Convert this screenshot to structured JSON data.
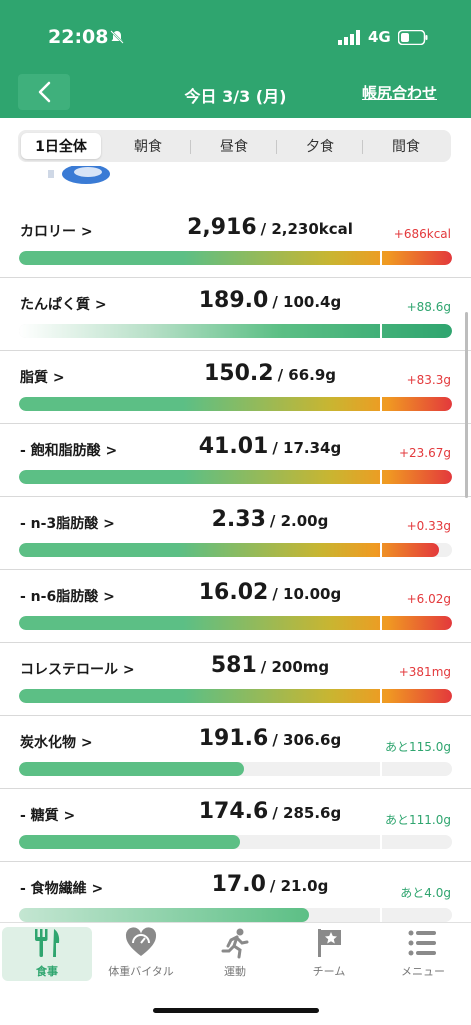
{
  "status_bar": {
    "time": "22:08",
    "network": "4G"
  },
  "nav": {
    "title": "今日 3/3 (月)",
    "action": "帳尻合わせ"
  },
  "tabs": [
    {
      "label": "1日全体",
      "active": true
    },
    {
      "label": "朝食",
      "active": false
    },
    {
      "label": "昼食",
      "active": false
    },
    {
      "label": "夕食",
      "active": false
    },
    {
      "label": "間食",
      "active": false
    }
  ],
  "nutrients": [
    {
      "label": "カロリー >",
      "value": "2,916",
      "target": "/ 2,230kcal",
      "diff": "+686kcal",
      "diff_type": "over",
      "fill_percent": 100,
      "gradient": "over"
    },
    {
      "label": "たんぱく質 >",
      "value": "189.0",
      "target": "/ 100.4g",
      "diff": "+88.6g",
      "diff_type": "green",
      "fill_percent": 100,
      "gradient": "protein"
    },
    {
      "label": "脂質 >",
      "value": "150.2",
      "target": "/ 66.9g",
      "diff": "+83.3g",
      "diff_type": "over",
      "fill_percent": 100,
      "gradient": "over"
    },
    {
      "label": "- 飽和脂肪酸 >",
      "value": "41.01",
      "target": "/ 17.34g",
      "diff": "+23.67g",
      "diff_type": "over",
      "fill_percent": 100,
      "gradient": "over"
    },
    {
      "label": "- n-3脂肪酸 >",
      "value": "2.33",
      "target": "/ 2.00g",
      "diff": "+0.33g",
      "diff_type": "over",
      "fill_percent": 97,
      "gradient": "over"
    },
    {
      "label": "- n-6脂肪酸 >",
      "value": "16.02",
      "target": "/ 10.00g",
      "diff": "+6.02g",
      "diff_type": "over",
      "fill_percent": 100,
      "gradient": "over"
    },
    {
      "label": "コレステロール >",
      "value": "581",
      "target": "/ 200mg",
      "diff": "+381mg",
      "diff_type": "over",
      "fill_percent": 100,
      "gradient": "over"
    },
    {
      "label": "炭水化物 >",
      "value": "191.6",
      "target": "/ 306.6g",
      "diff": "あと115.0g",
      "diff_type": "green",
      "fill_percent": 52,
      "gradient": "under"
    },
    {
      "label": "- 糖質 >",
      "value": "174.6",
      "target": "/ 285.6g",
      "diff": "あと111.0g",
      "diff_type": "green",
      "fill_percent": 51,
      "gradient": "under"
    },
    {
      "label": "- 食物繊維 >",
      "value": "17.0",
      "target": "/ 21.0g",
      "diff": "あと4.0g",
      "diff_type": "green",
      "fill_percent": 67,
      "gradient": "fiber"
    }
  ],
  "bottom_nav": [
    {
      "label": "食事",
      "icon": "utensils-icon",
      "active": true
    },
    {
      "label": "体重バイタル",
      "icon": "heart-gauge-icon",
      "active": false
    },
    {
      "label": "運動",
      "icon": "running-icon",
      "active": false
    },
    {
      "label": "チーム",
      "icon": "flag-star-icon",
      "active": false
    },
    {
      "label": "メニュー",
      "icon": "menu-list-icon",
      "active": false
    }
  ],
  "colors": {
    "brand": "#2fa56f",
    "over": "#e3393c",
    "bar_green": "#5cbf85",
    "bar_yellow": "#c9b531",
    "bar_orange": "#f09a22"
  }
}
